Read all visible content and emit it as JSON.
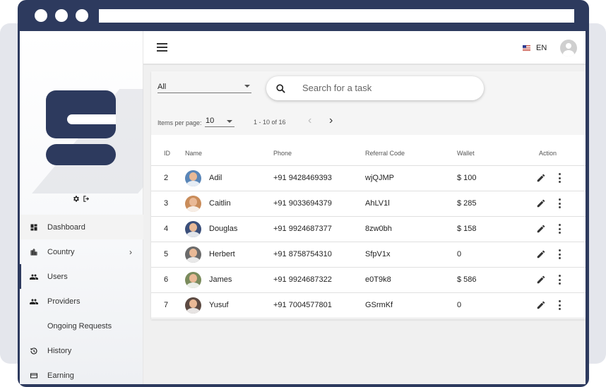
{
  "browser": {
    "dots": 3
  },
  "sidebar": {
    "items": [
      {
        "label": "Dashboard",
        "icon": "dashboard-icon"
      },
      {
        "label": "Country",
        "icon": "city-icon"
      },
      {
        "label": "Users",
        "icon": "people-icon"
      },
      {
        "label": "Providers",
        "icon": "people-icon"
      },
      {
        "label": "Ongoing Requests",
        "icon": ""
      },
      {
        "label": "History",
        "icon": "history-icon"
      },
      {
        "label": "Earning",
        "icon": "card-icon"
      }
    ]
  },
  "topbar": {
    "language": "EN"
  },
  "filters": {
    "status_value": "All",
    "search_placeholder": "Search for a task"
  },
  "pagination": {
    "items_per_page_label": "Items per page:",
    "items_per_page_value": "10",
    "range_label": "1 - 10 of 16"
  },
  "table": {
    "headers": {
      "id": "ID",
      "name": "Name",
      "phone": "Phone",
      "referral": "Referral Code",
      "wallet": "Wallet",
      "action": "Action"
    },
    "rows": [
      {
        "id": "2",
        "name": "Adil",
        "phone": "+91 9428469393",
        "referral": "wjQJMP",
        "wallet": "$ 100",
        "avatar_color": "#5a86b8"
      },
      {
        "id": "3",
        "name": "Caitlin",
        "phone": "+91 9033694379",
        "referral": "AhLV1l",
        "wallet": "$ 285",
        "avatar_color": "#c98c5a"
      },
      {
        "id": "4",
        "name": "Douglas",
        "phone": "+91 9924687377",
        "referral": "8zw0bh",
        "wallet": "$ 158",
        "avatar_color": "#3b4f7a"
      },
      {
        "id": "5",
        "name": "Herbert",
        "phone": "+91 8758754310",
        "referral": "SfpV1x",
        "wallet": "0",
        "avatar_color": "#6b6b6b"
      },
      {
        "id": "6",
        "name": "James",
        "phone": "+91 9924687322",
        "referral": "e0T9k8",
        "wallet": "$ 586",
        "avatar_color": "#7a8b5c"
      },
      {
        "id": "7",
        "name": "Yusuf",
        "phone": "+91 7004577801",
        "referral": "GSrmKf",
        "wallet": "0",
        "avatar_color": "#5c4a42"
      }
    ]
  },
  "colors": {
    "brand_navy": "#2d3a5e",
    "content_bg": "#f0f0f0"
  }
}
